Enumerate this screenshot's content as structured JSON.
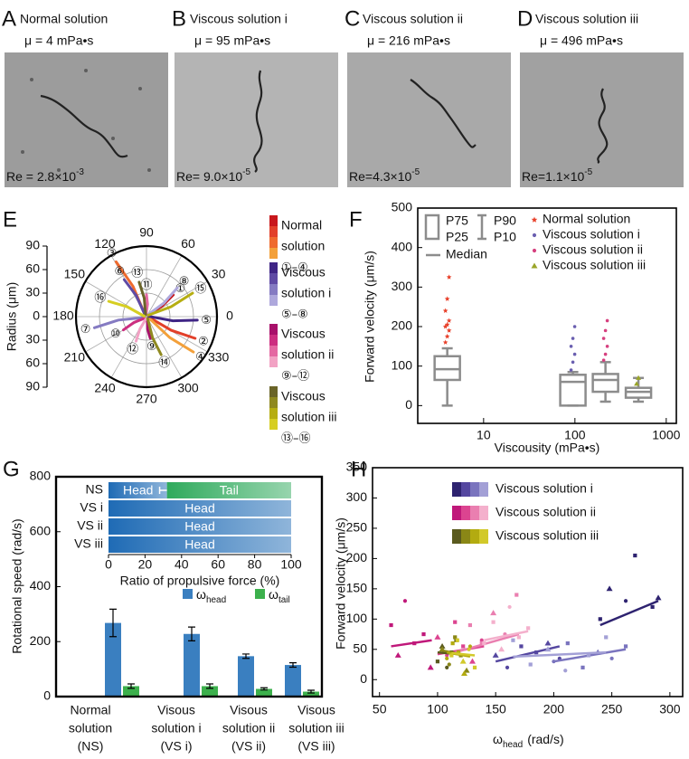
{
  "images": [
    {
      "letter": "A",
      "title": "Normal solution",
      "viscosity": "μ = 4 mPa•s",
      "re": "Re = 2.8×10",
      "re_exp": "-3"
    },
    {
      "letter": "B",
      "title": "Viscous solution i",
      "viscosity": "μ = 95 mPa•s",
      "re": "Re= 9.0×10",
      "re_exp": "-5"
    },
    {
      "letter": "C",
      "title": "Viscous solution ii",
      "viscosity": "μ = 216 mPa•s",
      "re": "Re=4.3×10",
      "re_exp": "-5"
    },
    {
      "letter": "D",
      "title": "Viscous solution iii",
      "viscosity": "μ = 496 mPa•s",
      "re": "Re=1.1×10",
      "re_exp": "-5"
    }
  ],
  "chart_data": [
    {
      "type": "polar",
      "panel": "E",
      "y_label": "Radius (μm)",
      "ylim": [
        -90,
        90
      ],
      "yticks": [
        90,
        60,
        30,
        0,
        {
          "value": -30,
          "label": "30"
        },
        {
          "value": -60,
          "label": "60"
        },
        {
          "value": -90,
          "label": "90"
        }
      ],
      "rlim": [
        0,
        90
      ],
      "rticks": [
        30,
        60,
        90
      ],
      "thetaticks": [
        0,
        30,
        60,
        90,
        120,
        150,
        180,
        210,
        240,
        270,
        300,
        330
      ],
      "legend": [
        {
          "lines": [
            "Normal",
            "solution",
            "①–④"
          ],
          "colors": [
            "#c8171c",
            "#e2402a",
            "#ef6a2e",
            "#f3a03a"
          ]
        },
        {
          "lines": [
            "Viscous",
            "solution i",
            "⑤–⑧"
          ],
          "colors": [
            "#3f2585",
            "#5f4aa4",
            "#857bc2",
            "#aea8dc"
          ]
        },
        {
          "lines": [
            "Viscous",
            "solution ii",
            "⑨–⑫"
          ],
          "colors": [
            "#a8106a",
            "#cc2e80",
            "#e468a2",
            "#f2a2c4"
          ]
        },
        {
          "lines": [
            "Viscous",
            "solution iii",
            "⑬–⑯"
          ],
          "colors": [
            "#6a6428",
            "#8f8920",
            "#b6ae12",
            "#d6ce22"
          ]
        }
      ],
      "series": [
        {
          "name": "①",
          "color": "#c8171c",
          "r": [
            3,
            24,
            44
          ],
          "theta": [
            49,
            34,
            39
          ]
        },
        {
          "name": "②",
          "color": "#e2402a",
          "r": [
            3,
            36,
            68
          ],
          "theta": [
            346,
            331,
            336
          ]
        },
        {
          "name": "③",
          "color": "#ef6a2e",
          "r": [
            3,
            42,
            80
          ],
          "theta": [
            129,
            114,
            119
          ]
        },
        {
          "name": "④",
          "color": "#f3a03a",
          "r": [
            3,
            40,
            75
          ],
          "theta": [
            333,
            318,
            323
          ]
        },
        {
          "name": "⑤",
          "color": "#3f2585",
          "r": [
            3,
            34,
            65
          ],
          "theta": [
            6,
            351,
            356
          ]
        },
        {
          "name": "⑥",
          "color": "#5f4aa4",
          "r": [
            3,
            30,
            55
          ],
          "theta": [
            131,
            116,
            121
          ]
        },
        {
          "name": "⑦",
          "color": "#857bc2",
          "r": [
            3,
            36,
            68
          ],
          "theta": [
            202,
            187,
            192
          ]
        },
        {
          "name": "⑧",
          "color": "#aea8dc",
          "r": [
            3,
            28,
            54
          ],
          "theta": [
            53,
            38,
            43
          ]
        },
        {
          "name": "⑨",
          "color": "#a8106a",
          "r": [
            3,
            16,
            28
          ],
          "theta": [
            290,
            275,
            280
          ]
        },
        {
          "name": "⑩",
          "color": "#cc2e80",
          "r": [
            3,
            18,
            34
          ],
          "theta": [
            220,
            205,
            210
          ]
        },
        {
          "name": "⑪",
          "color": "#e468a2",
          "r": [
            3,
            16,
            28
          ],
          "theta": [
            100,
            85,
            90
          ]
        },
        {
          "name": "⑫",
          "color": "#f2a2c4",
          "r": [
            3,
            18,
            34
          ],
          "theta": [
            257,
            242,
            247
          ]
        },
        {
          "name": "⑬",
          "color": "#6a6428",
          "r": [
            3,
            24,
            45
          ],
          "theta": [
            112,
            97,
            102
          ]
        },
        {
          "name": "⑭",
          "color": "#8f8920",
          "r": [
            3,
            28,
            52
          ],
          "theta": [
            301,
            286,
            291
          ]
        },
        {
          "name": "⑮",
          "color": "#b6ae12",
          "r": [
            3,
            34,
            66
          ],
          "theta": [
            37,
            22,
            27
          ]
        },
        {
          "name": "⑯",
          "color": "#d6ce22",
          "r": [
            3,
            28,
            52
          ],
          "theta": [
            168,
            153,
            158
          ]
        }
      ]
    },
    {
      "type": "box",
      "panel": "F",
      "y_label": "Forward velocity (μm/s)",
      "x_label": "Viscousity (mPa•s)",
      "xscale": "log",
      "xlim": [
        1.9,
        1290
      ],
      "xticks": [
        10,
        100,
        1000
      ],
      "ylim": [
        -45,
        500
      ],
      "yticks": [
        0,
        100,
        200,
        300,
        400,
        500
      ],
      "box_color": "#8c8c8c",
      "legend": {
        "box": [
          "P75",
          "P25"
        ],
        "whisker": [
          "P90",
          "P10"
        ],
        "median": "Median"
      },
      "series": [
        {
          "name": "Normal solution",
          "color": "#e8412b",
          "marker": "star",
          "x": 4,
          "p10": 0,
          "p25": 65,
          "median": 92,
          "p75": 125,
          "p90": 145,
          "points": [
            160,
            175,
            190,
            200,
            205,
            215,
            240,
            270,
            325
          ]
        },
        {
          "name": "Viscous solution i",
          "color": "#6a5fb0",
          "marker": "circle",
          "x": 95,
          "p10": 0,
          "p25": 0,
          "median": 60,
          "p75": 78,
          "p90": 85,
          "points": [
            90,
            110,
            130,
            150,
            170,
            200
          ]
        },
        {
          "name": "Viscous solution ii",
          "color": "#d6407f",
          "marker": "circle",
          "x": 216,
          "p10": 10,
          "p25": 35,
          "median": 65,
          "p75": 80,
          "p90": 110,
          "points": [
            115,
            130,
            150,
            170,
            190,
            215
          ]
        },
        {
          "name": "Viscous solution iii",
          "color": "#9aa52a",
          "marker": "triangle",
          "x": 496,
          "p10": 10,
          "p25": 20,
          "median": 35,
          "p75": 45,
          "p90": 70,
          "points": [
            55,
            70
          ]
        }
      ]
    },
    {
      "type": "bar",
      "panel": "G",
      "y_label": "Rotational speed (rad/s)",
      "ylim": [
        0,
        800
      ],
      "yticks": [
        0,
        200,
        400,
        600,
        800
      ],
      "categories": [
        [
          "Normal",
          "solution",
          "(NS)"
        ],
        [
          "Visous",
          "solution i",
          "(VS i)"
        ],
        [
          "Visous",
          "solution ii",
          "(VS ii)"
        ],
        [
          "Visous",
          "solution iii",
          "(VS iii)"
        ]
      ],
      "series": [
        {
          "name": "ω",
          "subscript": "head",
          "color": "#3a7fc0",
          "values": [
            268,
            228,
            147,
            115
          ],
          "errors": [
            50,
            25,
            8,
            8
          ]
        },
        {
          "name": "ω",
          "subscript": "tail",
          "color": "#3cb04c",
          "values": [
            38,
            38,
            28,
            18
          ],
          "errors": [
            8,
            8,
            4,
            5
          ]
        }
      ],
      "inset": {
        "type": "stacked_barh",
        "x_label": "Ratio of propulsive force (%)",
        "xlim": [
          0,
          100
        ],
        "xticks": [
          0,
          20,
          40,
          60,
          80,
          100
        ],
        "categories": [
          "NS",
          "VS i",
          "VS ii",
          "VS iii"
        ],
        "series": [
          {
            "name": "Head",
            "color": "#1f6bb5",
            "values": [
              32,
              100,
              100,
              100
            ],
            "errors": [
              4,
              null,
              null,
              null
            ]
          },
          {
            "name": "Tail",
            "color": "#2faa5c",
            "values": [
              68,
              0,
              0,
              0
            ]
          }
        ]
      }
    },
    {
      "type": "scatter",
      "panel": "H",
      "x_label": "ω",
      "x_label_sub": "head",
      "x_label_unit": "(rad/s)",
      "y_label": "Forward velocity (μm/s)",
      "xlim": [
        44,
        311
      ],
      "xticks": [
        50,
        100,
        150,
        200,
        250,
        300
      ],
      "ylim": [
        -28,
        350
      ],
      "yticks": [
        0,
        50,
        100,
        150,
        200,
        250,
        300,
        350
      ],
      "series": [
        {
          "name": "Viscous solution i",
          "colors": [
            "#2e2370",
            "#5547a0",
            "#7a74be",
            "#a3a0d6"
          ],
          "groups": [
            {
              "x": [
                240,
                248,
                262,
                270,
                285,
                290
              ],
              "y": [
                100,
                150,
                130,
                205,
                120,
                135
              ],
              "fit_x": [
                240,
                290
              ],
              "fit_y": [
                90,
                130
              ]
            },
            {
              "x": [
                150,
                160,
                172,
                185,
                195,
                205
              ],
              "y": [
                40,
                20,
                55,
                45,
                60,
                35
              ],
              "fit_x": [
                150,
                205
              ],
              "fit_y": [
                30,
                55
              ]
            },
            {
              "x": [
                200,
                212,
                225,
                238,
                250,
                262
              ],
              "y": [
                30,
                60,
                20,
                45,
                35,
                55
              ],
              "fit_x": [
                200,
                262
              ],
              "fit_y": [
                30,
                50
              ]
            },
            {
              "x": [
                165,
                180,
                195,
                210,
                230,
                245
              ],
              "y": [
                65,
                25,
                50,
                15,
                40,
                70
              ],
              "fit_x": [
                165,
                245
              ],
              "fit_y": [
                38,
                45
              ]
            }
          ]
        },
        {
          "name": "Viscous solution ii",
          "colors": [
            "#c0187a",
            "#dc4490",
            "#ea7fb0",
            "#f4b0cc"
          ],
          "groups": [
            {
              "x": [
                60,
                66,
                72,
                80,
                88,
                94
              ],
              "y": [
                90,
                40,
                130,
                60,
                75,
                20
              ],
              "fit_x": [
                60,
                95
              ],
              "fit_y": [
                55,
                65
              ]
            },
            {
              "x": [
                100,
                108,
                115,
                122,
                130,
                138
              ],
              "y": [
                70,
                40,
                95,
                55,
                30,
                65
              ],
              "fit_x": [
                100,
                140
              ],
              "fit_y": [
                42,
                55
              ]
            },
            {
              "x": [
                118,
                128,
                138,
                148,
                158,
                168
              ],
              "y": [
                45,
                90,
                60,
                110,
                75,
                140
              ],
              "fit_x": [
                115,
                170
              ],
              "fit_y": [
                45,
                75
              ]
            },
            {
              "x": [
                140,
                148,
                155,
                162,
                170,
                178
              ],
              "y": [
                60,
                95,
                50,
                120,
                70,
                85
              ],
              "fit_x": [
                140,
                178
              ],
              "fit_y": [
                65,
                80
              ]
            }
          ]
        },
        {
          "name": "Viscous solution iii",
          "colors": [
            "#5a5a1e",
            "#8a8716",
            "#b3ab10",
            "#d2c92a"
          ],
          "groups": [
            {
              "x": [
                100,
                104,
                108,
                112,
                116
              ],
              "y": [
                30,
                55,
                20,
                45,
                65
              ],
              "fit_x": [
                100,
                118
              ],
              "fit_y": [
                45,
                42
              ]
            },
            {
              "x": [
                104,
                110,
                115,
                120,
                125
              ],
              "y": [
                50,
                25,
                70,
                40,
                15
              ],
              "fit_x": [
                104,
                125
              ],
              "fit_y": [
                48,
                40
              ]
            },
            {
              "x": [
                108,
                113,
                118,
                123,
                128
              ],
              "y": [
                35,
                60,
                45,
                10,
                55
              ],
              "fit_x": [
                108,
                128
              ],
              "fit_y": [
                45,
                38
              ]
            },
            {
              "x": [
                112,
                117,
                122,
                127,
                132
              ],
              "y": [
                40,
                65,
                30,
                50,
                20
              ],
              "fit_x": [
                112,
                132
              ],
              "fit_y": [
                44,
                40
              ]
            }
          ]
        }
      ]
    }
  ]
}
